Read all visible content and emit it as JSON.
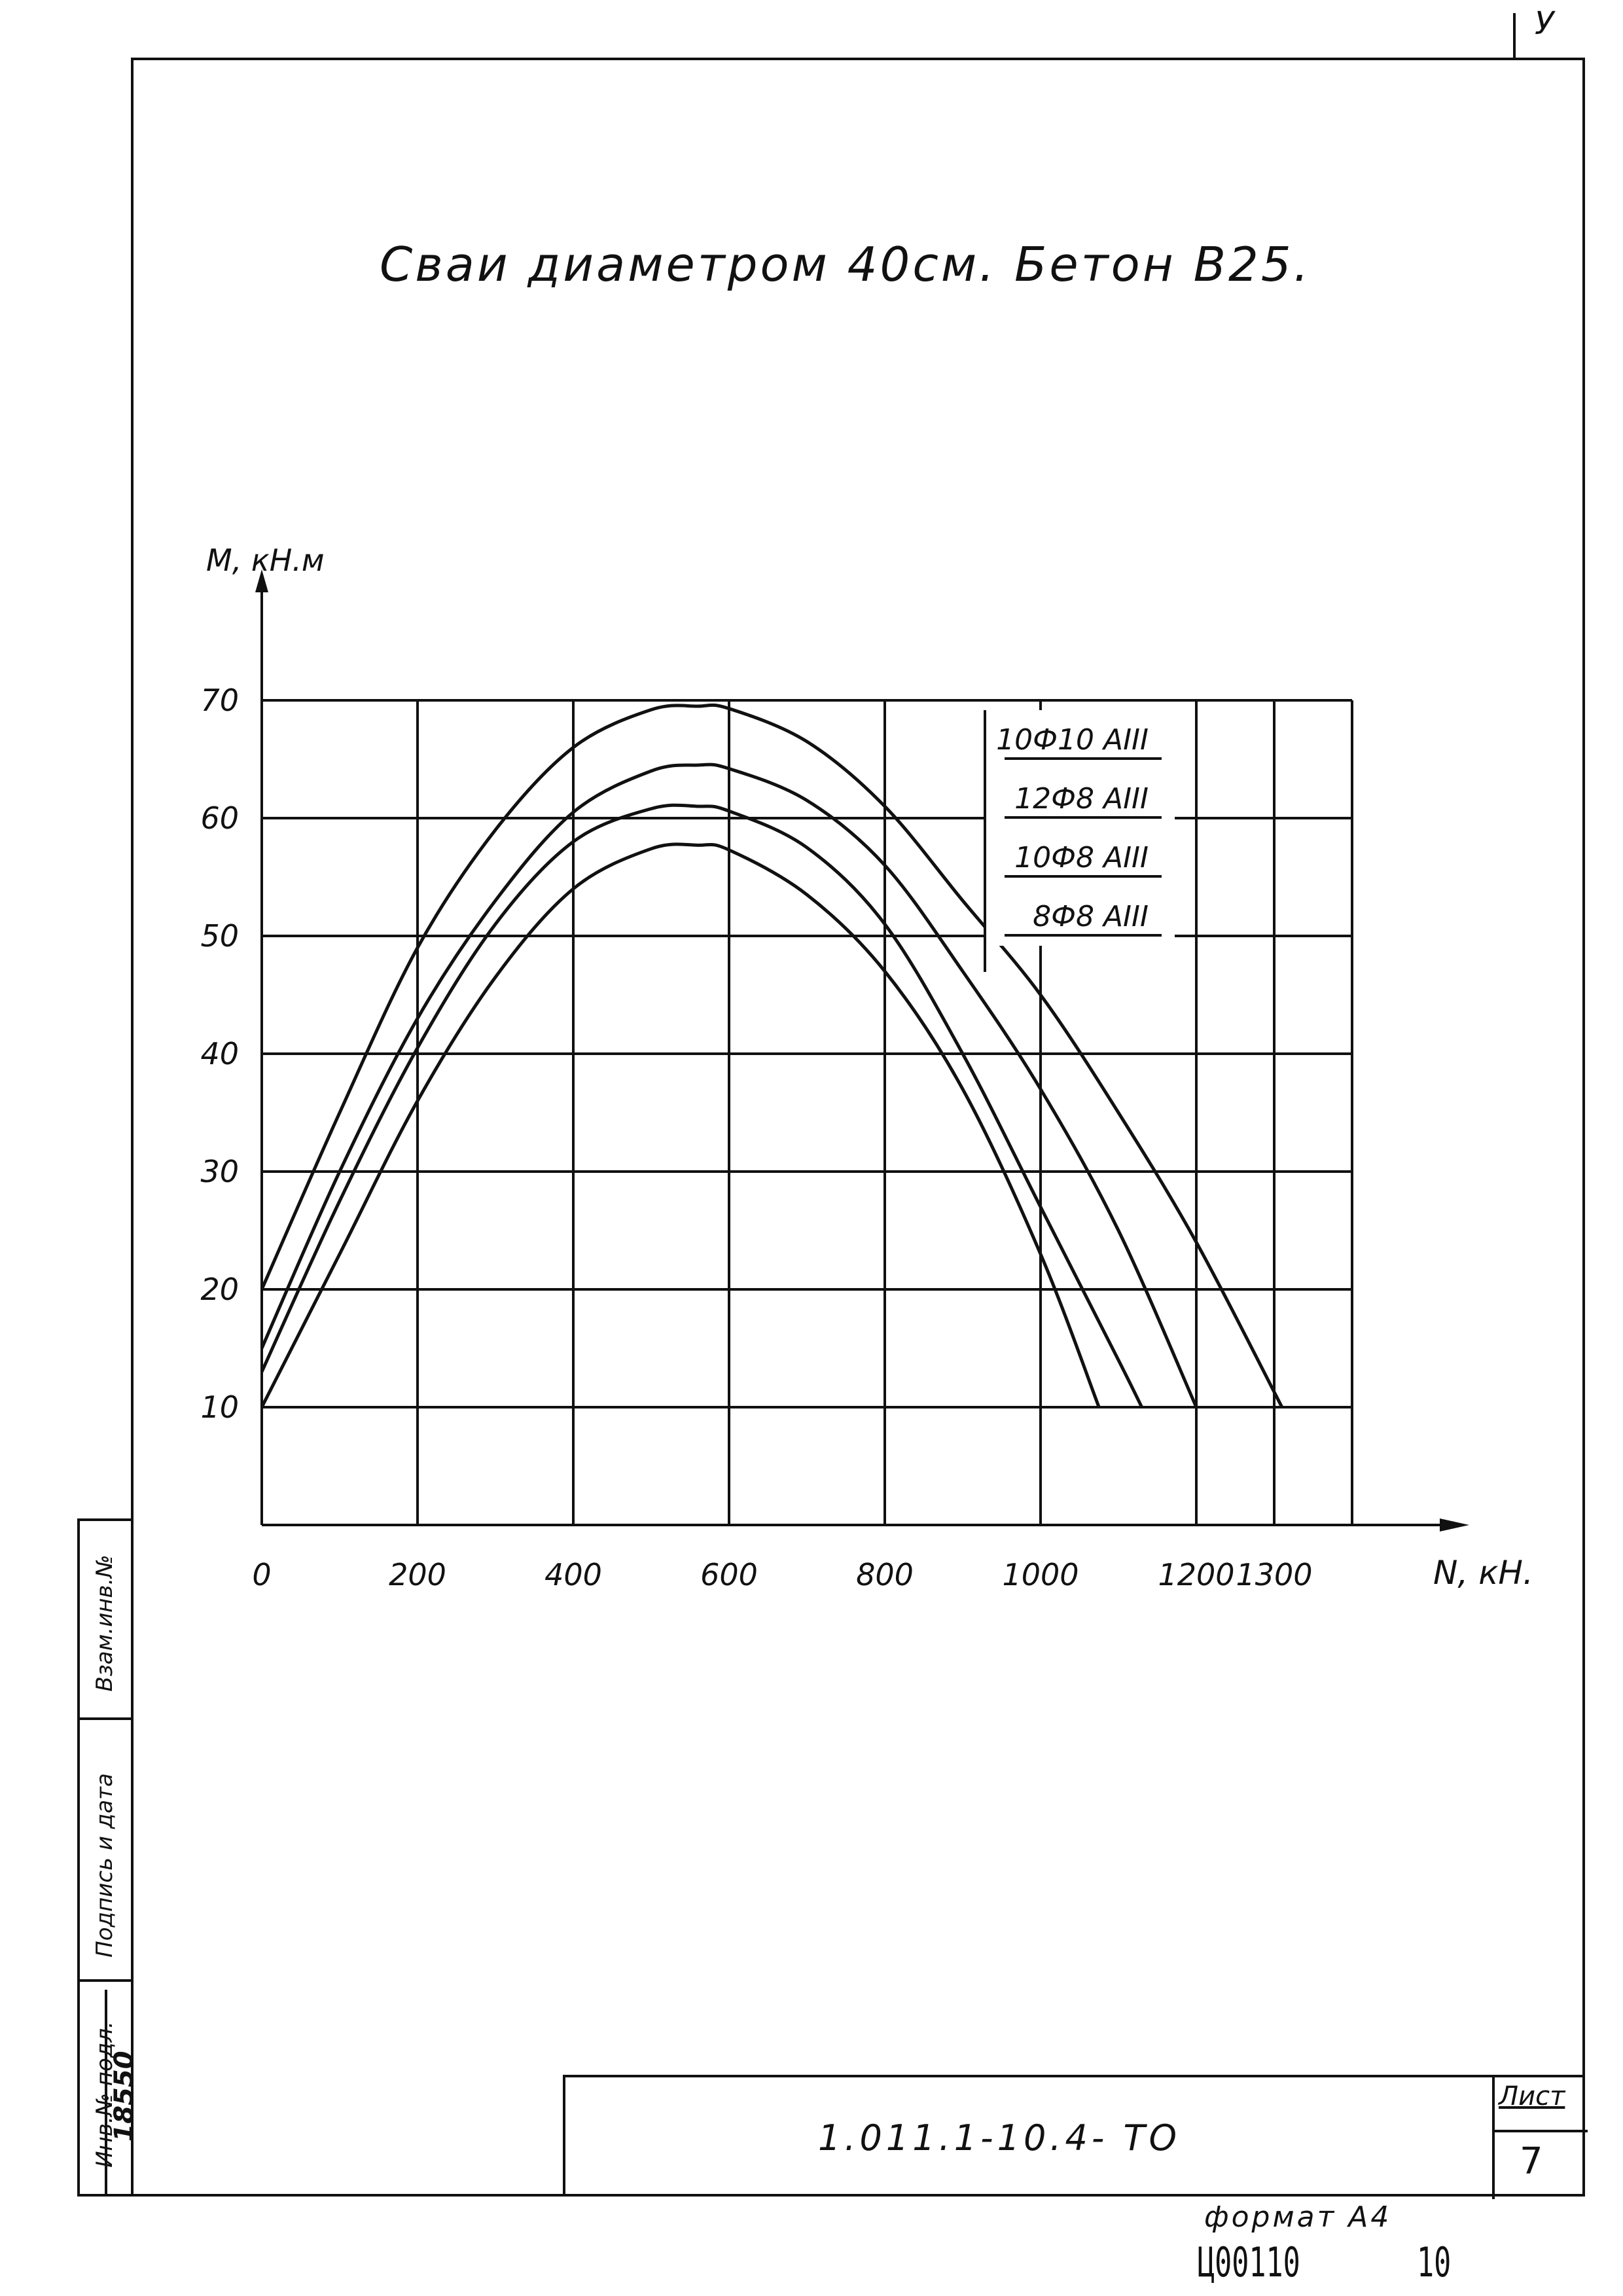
{
  "corner_mark": "У",
  "sheet_title": "Сваи диаметром 40см. Бетон В25.",
  "chart_data": {
    "type": "line",
    "title": "Сваи диаметром 40см. Бетон В25.",
    "xlabel": "N, кН.",
    "ylabel": "М, кН.м",
    "xlim": [
      0,
      1400
    ],
    "ylim": [
      0,
      70
    ],
    "x_ticks": [
      0,
      200,
      400,
      600,
      800,
      1000,
      1200,
      1300
    ],
    "x_tick_labels": [
      "0",
      "200",
      "400",
      "600",
      "800",
      "1000",
      "1200",
      "1300"
    ],
    "y_ticks": [
      10,
      20,
      30,
      40,
      50,
      60,
      70
    ],
    "y_tick_labels": [
      "10",
      "20",
      "30",
      "40",
      "50",
      "60",
      "70"
    ],
    "grid": true,
    "legend_position": "top-right",
    "series": [
      {
        "name": "10Ф10 АIII",
        "x": [
          0,
          100,
          200,
          300,
          400,
          500,
          560,
          600,
          700,
          800,
          900,
          1000,
          1100,
          1200,
          1310
        ],
        "y": [
          20,
          35,
          49,
          59,
          66,
          69.2,
          69.5,
          69.3,
          66.5,
          61,
          53,
          45,
          35,
          24,
          10
        ]
      },
      {
        "name": "12Ф8 АIII",
        "x": [
          0,
          100,
          200,
          300,
          400,
          500,
          560,
          600,
          700,
          800,
          900,
          1000,
          1100,
          1200
        ],
        "y": [
          15,
          30,
          43,
          53,
          60.5,
          64,
          64.5,
          64.2,
          61.5,
          56,
          47,
          37,
          25,
          10
        ]
      },
      {
        "name": "10Ф8 АIII",
        "x": [
          0,
          100,
          200,
          300,
          400,
          500,
          560,
          600,
          700,
          800,
          900,
          1000,
          1100,
          1130
        ],
        "y": [
          13,
          27.5,
          40.5,
          51,
          58,
          60.8,
          61,
          60.6,
          57.5,
          51,
          40,
          27,
          14,
          10
        ]
      },
      {
        "name": "8Ф8 АIII",
        "x": [
          0,
          100,
          200,
          300,
          400,
          500,
          560,
          600,
          700,
          800,
          900,
          1000,
          1075
        ],
        "y": [
          10,
          23,
          36,
          46.5,
          54,
          57.4,
          57.7,
          57.3,
          53.5,
          47,
          37,
          23,
          10
        ]
      }
    ]
  },
  "side_stamp": {
    "labels": [
      "Инв.№ подл.",
      "Подпись и дата",
      "Взам.инв.№"
    ],
    "inventory_number": "18550"
  },
  "title_block": {
    "doc_code": "1.011.1-10.4- ТО",
    "sheet_label": "Лист",
    "sheet_number": "7"
  },
  "footer": {
    "format": "формат А4",
    "archive_code": "Ц00110",
    "archive_number": "10"
  }
}
